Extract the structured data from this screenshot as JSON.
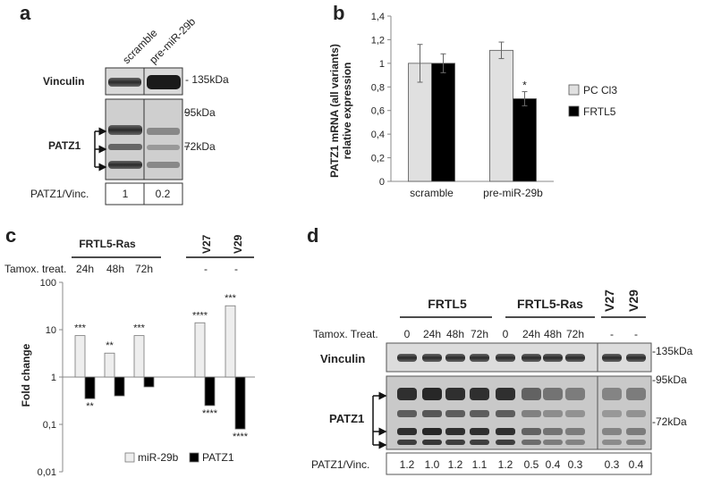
{
  "panel_a": {
    "letter": "a",
    "lanes": [
      "scramble",
      "pre-miR-29b"
    ],
    "vinculin_label": "Vinculin",
    "patz_label": "PATZ1",
    "markers": [
      "- 135kDa",
      "95kDa",
      "72kDa"
    ],
    "ratio_label": "PATZ1/Vinc.",
    "ratios": [
      "1",
      "0.2"
    ]
  },
  "panel_b": {
    "letter": "b"
  },
  "panel_c": {
    "letter": "c",
    "group_label": "FRTL5-Ras",
    "tamox_label": "Tamox. treat.",
    "times": [
      "24h",
      "48h",
      "72h"
    ],
    "controls": [
      "V27",
      "V29"
    ],
    "dashes": [
      "-",
      "-"
    ]
  },
  "panel_d": {
    "letter": "d",
    "group1": "FRTL5",
    "group2": "FRTL5-Ras",
    "controls": [
      "V27",
      "V29"
    ],
    "tamox_label": "Tamox. Treat.",
    "times": [
      "0",
      "24h",
      "48h",
      "72h",
      "0",
      "24h",
      "48h",
      "72h",
      "-",
      "-"
    ],
    "vinculin_label": "Vinculin",
    "patz_label": "PATZ1",
    "markers": [
      "-135kDa",
      "-95kDa",
      "-72kDa"
    ],
    "ratio_label": "PATZ1/Vinc.",
    "ratios": [
      "1.2",
      "1.0",
      "1.2",
      "1.1",
      "1.2",
      "0.5",
      "0.4",
      "0.3",
      "0.3",
      "0.4"
    ]
  },
  "chart_data": [
    {
      "type": "bar",
      "ylabel": "PATZ1 mRNA (all variants) relative expression",
      "categories": [
        "scramble",
        "pre-miR-29b"
      ],
      "ylim": [
        0,
        1.4
      ],
      "yticks": [
        "0",
        "0,2",
        "0,4",
        "0,6",
        "0,8",
        "1",
        "1,2",
        "1,4"
      ],
      "series": [
        {
          "name": "PC Cl3",
          "values": [
            1.0,
            1.11
          ],
          "errors": [
            0.16,
            0.07
          ],
          "color": "#e0e0e0"
        },
        {
          "name": "FRTL5",
          "values": [
            1.0,
            0.7
          ],
          "errors": [
            0.08,
            0.06
          ],
          "color": "#000000"
        }
      ],
      "annotations": [
        {
          "category": "pre-miR-29b",
          "series": "FRTL5",
          "text": "*"
        }
      ],
      "legend": "right"
    },
    {
      "type": "bar",
      "ylabel": "Fold change",
      "scale": "log",
      "ylim": [
        0.01,
        100
      ],
      "yticks": [
        "0,01",
        "0,1",
        "1",
        "10",
        "100"
      ],
      "categories": [
        "24h",
        "48h",
        "72h",
        "V27",
        "V29"
      ],
      "series": [
        {
          "name": "miR-29b",
          "values": [
            7.5,
            3.2,
            7.5,
            14,
            32
          ],
          "stars": [
            "***",
            "**",
            "***",
            "****",
            "***"
          ],
          "color": "#eeeeee"
        },
        {
          "name": "PATZ1",
          "values": [
            0.35,
            0.4,
            0.62,
            0.25,
            0.08
          ],
          "stars": [
            "**",
            "",
            "",
            "****",
            "****"
          ],
          "color": "#000000"
        }
      ],
      "legend": "bottom-right"
    }
  ]
}
